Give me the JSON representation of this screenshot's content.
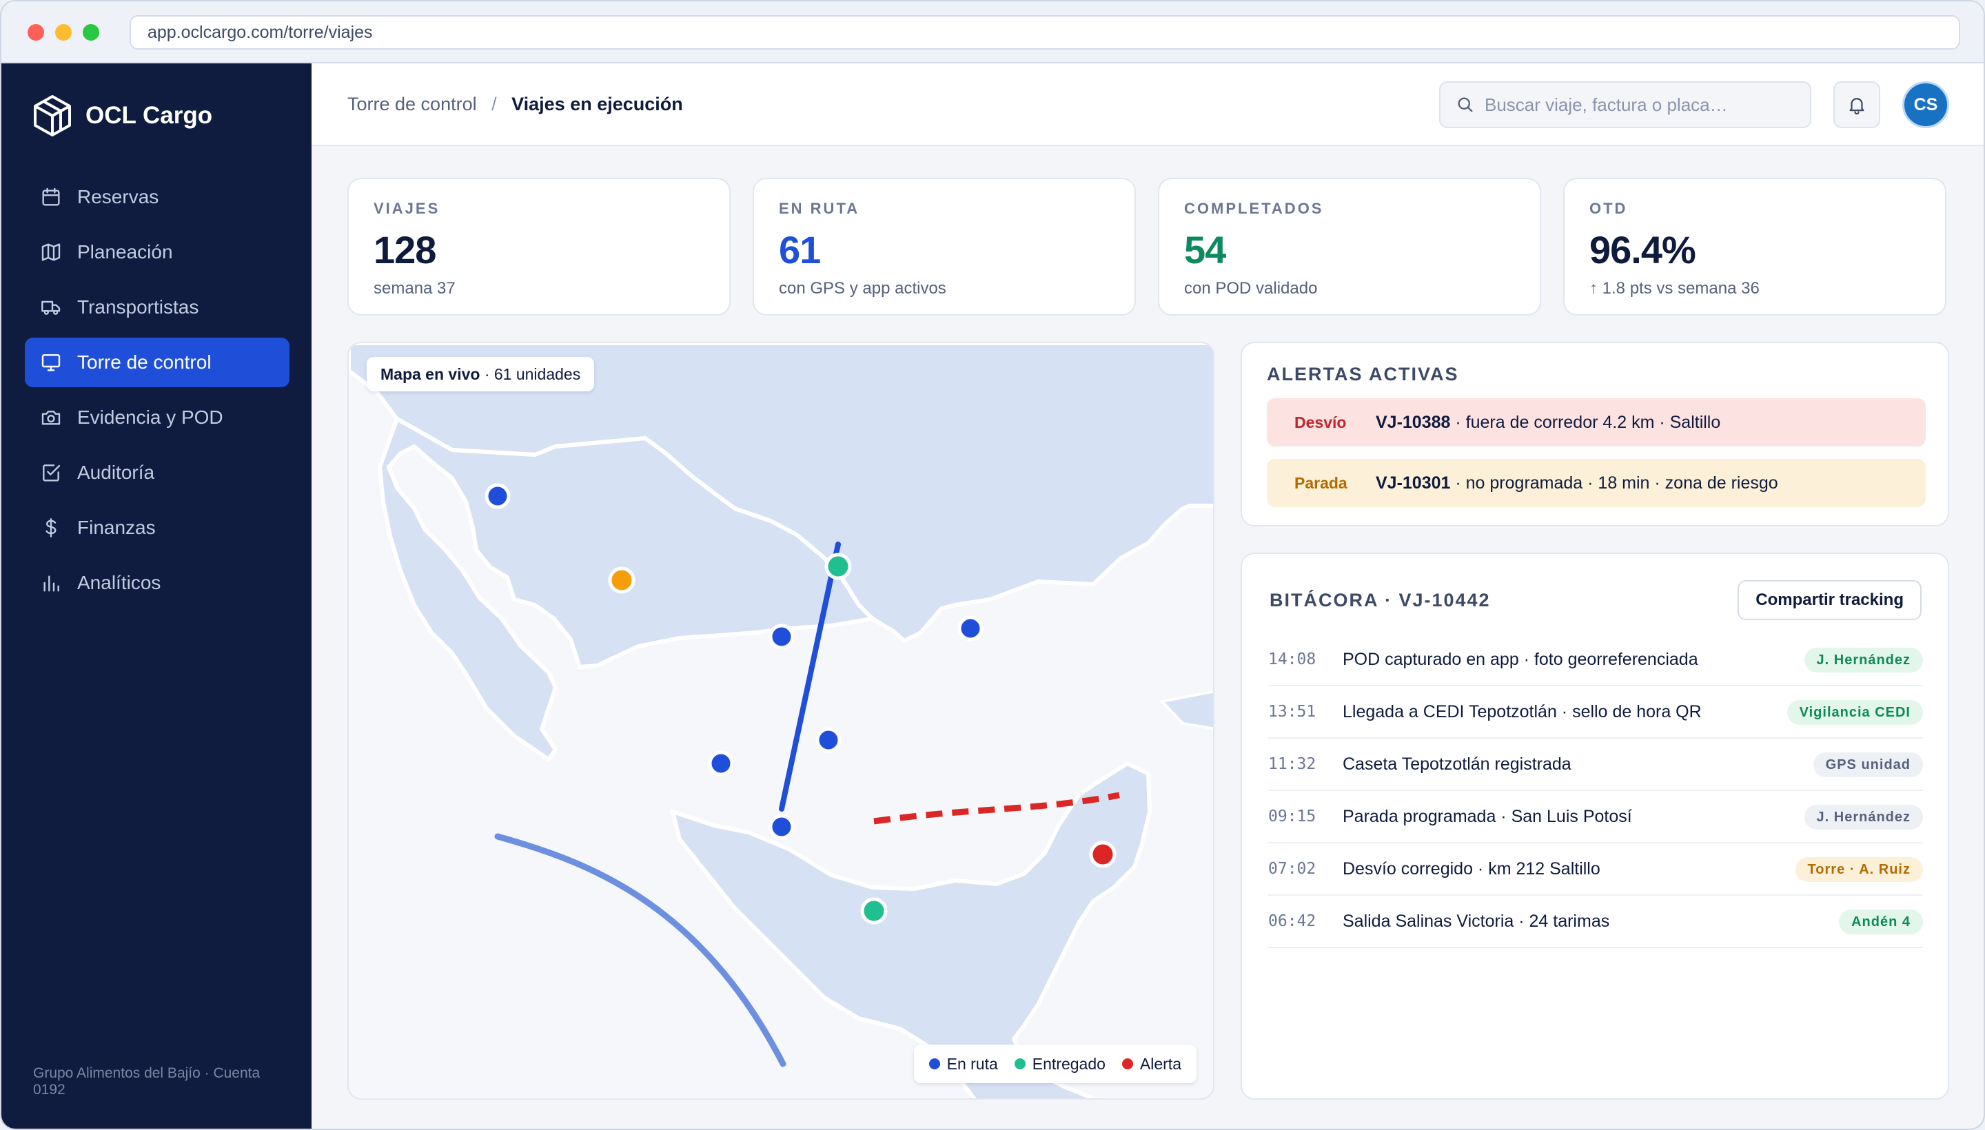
{
  "browser": {
    "url": "app.oclcargo.com/torre/viajes"
  },
  "brand": {
    "name": "OCL Cargo"
  },
  "sidebar": {
    "items": [
      {
        "label": "Reservas",
        "icon": "calendar-icon"
      },
      {
        "label": "Planeación",
        "icon": "map-icon"
      },
      {
        "label": "Transportistas",
        "icon": "truck-icon"
      },
      {
        "label": "Torre de control",
        "icon": "monitor-icon",
        "active": true
      },
      {
        "label": "Evidencia y POD",
        "icon": "camera-icon"
      },
      {
        "label": "Auditoría",
        "icon": "checkbox-icon"
      },
      {
        "label": "Finanzas",
        "icon": "dollar-icon"
      },
      {
        "label": "Analíticos",
        "icon": "bar-chart-icon"
      }
    ],
    "account": "Grupo Alimentos del Bajío · Cuenta 0192"
  },
  "header": {
    "breadcrumb_parent": "Torre de control",
    "breadcrumb_separator": "/",
    "breadcrumb_current": "Viajes en ejecución",
    "search_placeholder": "Buscar viaje, factura o placa…",
    "avatar_initials": "CS"
  },
  "stats": [
    {
      "label": "VIAJES",
      "value": "128",
      "sub": "semana 37",
      "color": "#0f1b3d"
    },
    {
      "label": "EN RUTA",
      "value": "61",
      "sub": "con GPS y app activos",
      "color": "#1f4fd8"
    },
    {
      "label": "COMPLETADOS",
      "value": "54",
      "sub": "con POD validado",
      "color": "#0e8a5f"
    },
    {
      "label": "OTD",
      "value": "96.4%",
      "sub": "↑ 1.8 pts vs semana 36",
      "color": "#0f1b3d"
    }
  ],
  "map": {
    "title_bold": "Mapa en vivo",
    "title_rest": " · 61 unidades",
    "legend": [
      {
        "label": "En ruta",
        "color": "#1f4fd8"
      },
      {
        "label": "Entregado",
        "color": "#1fbf8f"
      },
      {
        "label": "Alerta",
        "color": "#dc2626"
      }
    ]
  },
  "alerts": {
    "title": "ALERTAS ACTIVAS",
    "items": [
      {
        "type": "Desvío",
        "trip": "VJ-10388",
        "text": " · fuera de corredor 4.2 km · Saltillo",
        "bg": "#fde2e2",
        "color": "#c0262d"
      },
      {
        "type": "Parada",
        "trip": "VJ-10301",
        "text": " · no programada · 18 min · zona de riesgo",
        "bg": "#fdf0d8",
        "color": "#b36b00"
      }
    ]
  },
  "log": {
    "title": "BITÁCORA · VJ-10442",
    "share_label": "Compartir tracking",
    "rows": [
      {
        "time": "14:08",
        "text": "POD capturado en app · foto georreferenciada",
        "tag": "J. Hernández",
        "tone": "green"
      },
      {
        "time": "13:51",
        "text": "Llegada a CEDI Tepotzotlán · sello de hora QR",
        "tag": "Vigilancia CEDI",
        "tone": "green"
      },
      {
        "time": "11:32",
        "text": "Caseta Tepotzotlán registrada",
        "tag": "GPS unidad",
        "tone": "gray"
      },
      {
        "time": "09:15",
        "text": "Parada programada · San Luis Potosí",
        "tag": "J. Hernández",
        "tone": "gray"
      },
      {
        "time": "07:02",
        "text": "Desvío corregido · km 212 Saltillo",
        "tag": "Torre · A. Ruiz",
        "tone": "amber"
      },
      {
        "time": "06:42",
        "text": "Salida Salinas Victoria · 24 tarimas",
        "tag": "Andén 4",
        "tone": "green"
      }
    ]
  }
}
